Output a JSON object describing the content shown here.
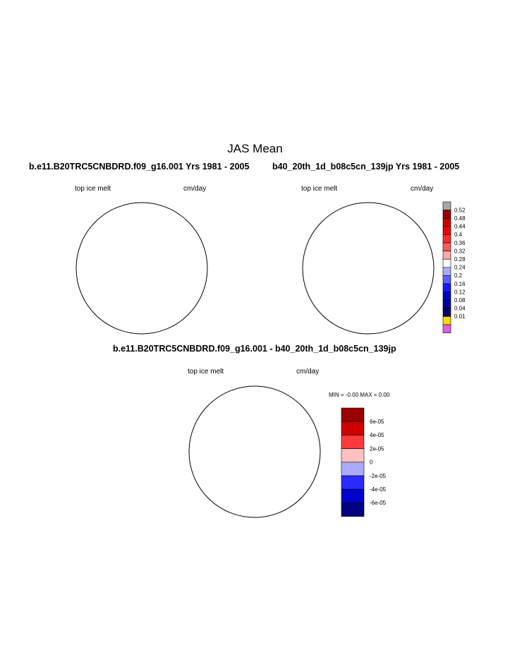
{
  "title": "JAS Mean",
  "panels": {
    "left_title": "b.e11.B20TRC5CNBDRD.f09_g16.001  Yrs 1981 - 2005",
    "right_title": "b40_20th_1d_b08c5cn_139jp  Yrs 1981 - 2005",
    "diff_title": "b.e11.B20TRC5CNBDRD.f09_g16.001 - b40_20th_1d_b08c5cn_139jp",
    "variable": "top ice melt",
    "units": "cm/day",
    "minmax": "MIN =  -0.00 MAX =   0.00"
  },
  "colorbar_top": {
    "labels": [
      "0.52",
      "0.48",
      "0.44",
      "0.4",
      "0.36",
      "0.32",
      "0.28",
      "0.24",
      "0.2",
      "0.16",
      "0.12",
      "0.08",
      "0.04",
      "0.01"
    ],
    "colors": [
      "#a8a8a8",
      "#990000",
      "#cc0000",
      "#ee0000",
      "#ff2a2a",
      "#ff5a5a",
      "#ffaaaa",
      "#ffffff",
      "#aaaaff",
      "#6060ff",
      "#1a1aff",
      "#0000cc",
      "#000099",
      "#000066",
      "#ffd700",
      "#dd60dd"
    ]
  },
  "colorbar_diff": {
    "labels": [
      "6e-05",
      "4e-05",
      "2e-05",
      "0",
      "-2e-05",
      "-4e-05",
      "-6e-05"
    ],
    "colors": [
      "#990000",
      "#cc0000",
      "#ff3a3a",
      "#ffc0c0",
      "#aaaaff",
      "#2a2aff",
      "#0000cc",
      "#000080"
    ]
  },
  "map_colors": {
    "land": "#b4b4b4",
    "ice_melt": "#dd60dd",
    "diff_neg": "#aaaaff",
    "diff_pos": "#ffc0c0"
  }
}
